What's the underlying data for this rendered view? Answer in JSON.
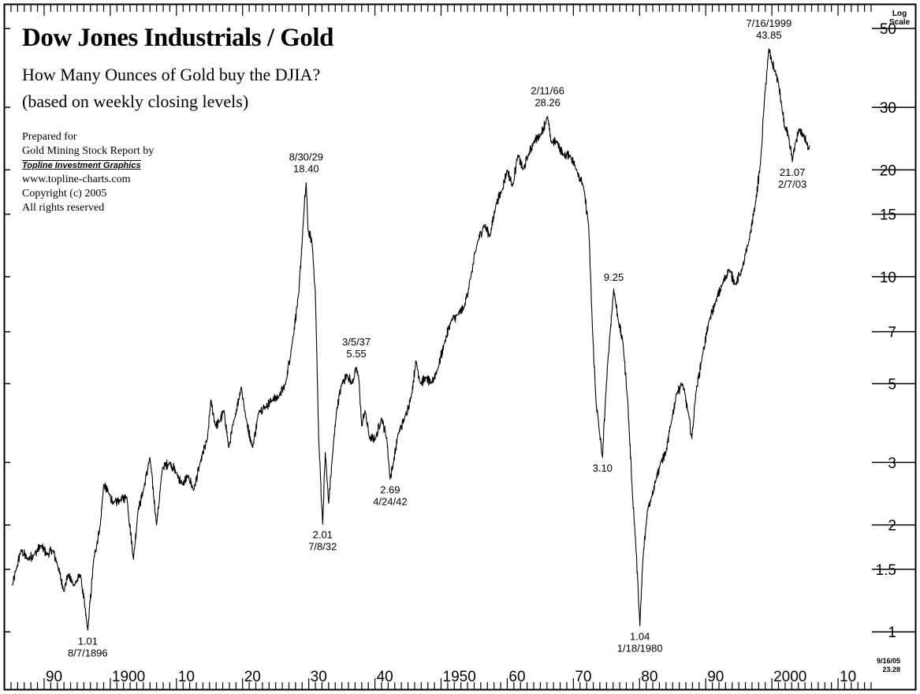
{
  "header": {
    "title": "Dow Jones Industrials / Gold",
    "subtitle_1": "How Many Ounces of Gold buy the DJIA?",
    "subtitle_2": "(based on weekly closing levels)"
  },
  "credits": {
    "line_1": "Prepared for",
    "line_2": "Gold Mining Stock Report by",
    "brand": "Topline Investment Graphics",
    "url": "www.topline-charts.com",
    "copyright": "Copyright (c) 2005",
    "rights": "All rights reserved"
  },
  "axis_header": {
    "line_1": "Log",
    "line_2": "Scale"
  },
  "stamp": {
    "date": "9/16/05",
    "value": "23.28"
  },
  "chart_data": {
    "type": "line",
    "title": "Dow Jones Industrials / Gold",
    "scale": "log",
    "xlim": [
      1885,
      2015
    ],
    "ylim": [
      0.85,
      56
    ],
    "yticks": [
      {
        "value": 1,
        "label": "1"
      },
      {
        "value": 1.5,
        "label": "1.5"
      },
      {
        "value": 2,
        "label": "2"
      },
      {
        "value": 3,
        "label": "3"
      },
      {
        "value": 5,
        "label": "5"
      },
      {
        "value": 7,
        "label": "7"
      },
      {
        "value": 10,
        "label": "10"
      },
      {
        "value": 15,
        "label": "15"
      },
      {
        "value": 20,
        "label": "20"
      },
      {
        "value": 30,
        "label": "30"
      },
      {
        "value": 50,
        "label": "50"
      }
    ],
    "xticks": [
      {
        "year": 1890,
        "label": "90"
      },
      {
        "year": 1900,
        "label": "1900"
      },
      {
        "year": 1910,
        "label": "10"
      },
      {
        "year": 1920,
        "label": "20"
      },
      {
        "year": 1930,
        "label": "30"
      },
      {
        "year": 1940,
        "label": "40"
      },
      {
        "year": 1950,
        "label": "1950"
      },
      {
        "year": 1960,
        "label": "60"
      },
      {
        "year": 1970,
        "label": "70"
      },
      {
        "year": 1980,
        "label": "80"
      },
      {
        "year": 1990,
        "label": "90"
      },
      {
        "year": 2000,
        "label": "2000"
      },
      {
        "year": 2010,
        "label": "10"
      }
    ],
    "series": [
      {
        "name": "DJIA / Gold ratio",
        "x": [
          1885.2,
          1885.8,
          1886.5,
          1887.5,
          1888.5,
          1889.5,
          1890.5,
          1891.3,
          1892.0,
          1893.0,
          1893.6,
          1894.5,
          1895.5,
          1896.6,
          1897.5,
          1898.5,
          1899.0,
          1899.8,
          1900.5,
          1901.5,
          1902.5,
          1903.5,
          1904.2,
          1905.0,
          1906.0,
          1907.0,
          1907.9,
          1909.0,
          1910.0,
          1910.9,
          1911.8,
          1912.6,
          1913.6,
          1914.7,
          1915.2,
          1915.9,
          1916.5,
          1917.2,
          1917.9,
          1918.8,
          1919.8,
          1920.5,
          1921.5,
          1922.5,
          1923.5,
          1924.5,
          1925.5,
          1926.5,
          1927.5,
          1928.5,
          1929.2,
          1929.6,
          1929.9,
          1930.5,
          1931.0,
          1931.5,
          1932.1,
          1932.5,
          1933.0,
          1933.5,
          1934.2,
          1935.0,
          1935.8,
          1936.5,
          1937.2,
          1937.6,
          1938.0,
          1938.5,
          1939.2,
          1940.1,
          1941.0,
          1941.8,
          1942.3,
          1942.8,
          1943.5,
          1944.5,
          1945.5,
          1946.2,
          1946.9,
          1947.7,
          1948.5,
          1949.5,
          1950.5,
          1951.5,
          1952.5,
          1953.5,
          1954.5,
          1955.5,
          1956.5,
          1957.4,
          1958.3,
          1959.2,
          1960.0,
          1960.8,
          1961.6,
          1962.4,
          1963.2,
          1964.0,
          1965.0,
          1966.1,
          1966.6,
          1967.5,
          1968.5,
          1969.5,
          1970.5,
          1971.5,
          1972.3,
          1972.9,
          1973.4,
          1973.9,
          1974.4,
          1974.9,
          1975.5,
          1976.1,
          1976.8,
          1977.5,
          1978.2,
          1978.9,
          1979.4,
          1979.8,
          1980.05,
          1980.5,
          1981.2,
          1981.8,
          1982.5,
          1983.2,
          1984.0,
          1984.8,
          1985.6,
          1986.5,
          1987.4,
          1987.9,
          1988.5,
          1989.5,
          1990.5,
          1991.5,
          1992.5,
          1993.5,
          1994.5,
          1995.5,
          1996.5,
          1997.5,
          1998.3,
          1998.9,
          1999.55,
          2000.0,
          2000.5,
          2001.0,
          2001.5,
          2002.0,
          2002.5,
          2003.1,
          2003.6,
          2004.2,
          2004.8,
          2005.3,
          2005.7
        ],
        "values": [
          1.35,
          1.5,
          1.7,
          1.6,
          1.65,
          1.75,
          1.65,
          1.7,
          1.55,
          1.3,
          1.45,
          1.35,
          1.45,
          1.01,
          1.6,
          2.0,
          2.6,
          2.45,
          2.3,
          2.35,
          2.4,
          1.6,
          2.2,
          2.5,
          3.1,
          2.0,
          2.9,
          3.0,
          2.8,
          2.6,
          2.75,
          2.5,
          3.0,
          3.5,
          4.5,
          3.8,
          3.9,
          4.2,
          3.3,
          4.0,
          4.9,
          4.0,
          3.3,
          4.2,
          4.3,
          4.5,
          4.6,
          5.0,
          6.5,
          9.0,
          14.5,
          18.4,
          13.5,
          12.5,
          9.0,
          3.5,
          2.01,
          3.2,
          2.3,
          3.0,
          4.2,
          5.0,
          5.3,
          5.0,
          5.55,
          5.1,
          3.8,
          4.2,
          3.5,
          3.5,
          4.0,
          3.5,
          2.69,
          3.0,
          3.6,
          4.0,
          4.6,
          5.8,
          5.0,
          5.2,
          5.0,
          5.5,
          6.5,
          7.5,
          7.8,
          8.2,
          10.0,
          12.5,
          14.0,
          13.0,
          16.0,
          17.5,
          20.0,
          18.0,
          22.0,
          20.0,
          22.0,
          24.0,
          25.0,
          28.26,
          24.0,
          24.0,
          22.0,
          22.0,
          20.0,
          18.0,
          14.0,
          7.0,
          4.5,
          3.7,
          3.1,
          4.7,
          6.8,
          9.25,
          7.5,
          6.5,
          4.5,
          2.5,
          1.8,
          1.3,
          1.04,
          1.6,
          2.2,
          2.4,
          2.7,
          3.0,
          3.2,
          3.9,
          4.7,
          5.0,
          4.1,
          3.5,
          4.7,
          6.0,
          7.5,
          8.5,
          9.5,
          10.5,
          9.5,
          10.5,
          12.5,
          16.0,
          21.0,
          32.0,
          43.85,
          40.0,
          38.0,
          35.0,
          30.0,
          26.0,
          25.0,
          21.07,
          24.0,
          26.0,
          25.0,
          23.5,
          23.28
        ]
      }
    ],
    "annotations": [
      {
        "label": "8/30/29",
        "value_label": "18.40",
        "x": 1929.6,
        "y": 18.4,
        "position": "above"
      },
      {
        "label": "7/8/32",
        "value_label": "2.01",
        "x": 1932.1,
        "y": 2.01,
        "position": "below"
      },
      {
        "label": "3/5/37",
        "value_label": "5.55",
        "x": 1937.2,
        "y": 5.55,
        "position": "above"
      },
      {
        "label": "4/24/42",
        "value_label": "2.69",
        "x": 1942.3,
        "y": 2.69,
        "position": "below"
      },
      {
        "label": "8/7/1896",
        "value_label": "1.01",
        "x": 1896.6,
        "y": 1.01,
        "position": "below"
      },
      {
        "label": "2/11/66",
        "value_label": "28.26",
        "x": 1966.1,
        "y": 28.26,
        "position": "above"
      },
      {
        "label": "",
        "value_label": "3.10",
        "x": 1974.4,
        "y": 3.1,
        "position": "below"
      },
      {
        "label": "",
        "value_label": "9.25",
        "x": 1976.1,
        "y": 9.25,
        "position": "above"
      },
      {
        "label": "1/18/1980",
        "value_label": "1.04",
        "x": 1980.05,
        "y": 1.04,
        "position": "below"
      },
      {
        "label": "7/16/1999",
        "value_label": "43.85",
        "x": 1999.55,
        "y": 43.85,
        "position": "above"
      },
      {
        "label": "2/7/03",
        "value_label": "21.07",
        "x": 2003.1,
        "y": 21.07,
        "position": "below"
      }
    ]
  }
}
